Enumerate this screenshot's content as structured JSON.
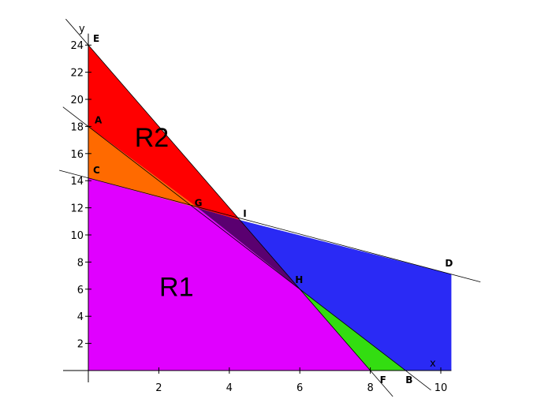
{
  "chart_data": {
    "type": "area",
    "title": "",
    "xlabel": "x",
    "ylabel": "y",
    "xlim": [
      0,
      10.3
    ],
    "ylim": [
      0,
      24.5
    ],
    "x_ticks": [
      2,
      4,
      6,
      8,
      10
    ],
    "y_ticks": [
      2,
      4,
      6,
      8,
      10,
      12,
      14,
      16,
      18,
      20,
      22,
      24
    ],
    "grid": false,
    "lines": [
      {
        "name": "",
        "points": [
          [
            0,
            18
          ],
          [
            9,
            0
          ]
        ]
      },
      {
        "name": "",
        "points": [
          [
            0,
            14.2
          ],
          [
            10.3,
            7.1
          ]
        ]
      },
      {
        "name": "",
        "points": [
          [
            0,
            24
          ],
          [
            8,
            0
          ]
        ]
      }
    ],
    "points": [
      {
        "label": "E",
        "x": 0,
        "y": 24
      },
      {
        "label": "A",
        "x": 0,
        "y": 18
      },
      {
        "label": "C",
        "x": 0,
        "y": 14.2
      },
      {
        "label": "G",
        "x": 3.1,
        "y": 12
      },
      {
        "label": "I",
        "x": 4.3,
        "y": 11.1
      },
      {
        "label": "H",
        "x": 6,
        "y": 6
      },
      {
        "label": "D",
        "x": 10.3,
        "y": 7.1
      },
      {
        "label": "F",
        "x": 8,
        "y": 0
      },
      {
        "label": "B",
        "x": 9,
        "y": 0
      }
    ],
    "regions": [
      {
        "label": "R1",
        "color": "#e000ff",
        "vertices": [
          [
            0,
            0
          ],
          [
            0,
            14.2
          ],
          [
            3.1,
            12
          ],
          [
            6,
            6
          ],
          [
            8,
            0
          ]
        ],
        "label_pos": [
          2.5,
          5.5
        ]
      },
      {
        "label": "",
        "color": "#ff6a00",
        "vertices": [
          [
            0,
            14.2
          ],
          [
            0,
            18
          ],
          [
            3.1,
            12
          ]
        ]
      },
      {
        "label": "R2",
        "color": "#ff0000",
        "vertices": [
          [
            0,
            18
          ],
          [
            0,
            24
          ],
          [
            4.3,
            11.1
          ],
          [
            3.1,
            12
          ]
        ],
        "label_pos": [
          1.8,
          16.5
        ]
      },
      {
        "label": "",
        "color": "#5a0070",
        "vertices": [
          [
            3.1,
            12
          ],
          [
            4.3,
            11.1
          ],
          [
            6,
            6
          ]
        ]
      },
      {
        "label": "",
        "color": "#2a2af5",
        "vertices": [
          [
            4.3,
            11.1
          ],
          [
            10.3,
            7.1
          ],
          [
            10.3,
            0
          ],
          [
            9,
            0
          ],
          [
            6,
            6
          ]
        ]
      },
      {
        "label": "",
        "color": "#33dd11",
        "vertices": [
          [
            6,
            6
          ],
          [
            9,
            0
          ],
          [
            8,
            0
          ]
        ]
      }
    ]
  }
}
